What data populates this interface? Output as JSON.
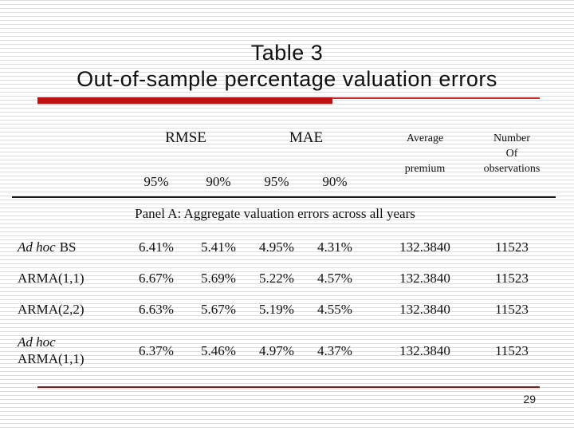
{
  "slide": {
    "title_line1": "Table 3",
    "title_line2": "Out-of-sample percentage valuation errors",
    "page_number": "29"
  },
  "table": {
    "group_headers": [
      "RMSE",
      "MAE"
    ],
    "sub_headers": [
      "95%",
      "90%",
      "95%",
      "90%"
    ],
    "avg_header": [
      "Average",
      "premium"
    ],
    "obs_header": [
      "Number",
      "Of",
      "observations"
    ],
    "panel_title": "Panel A: Aggregate valuation errors across all years",
    "rows": [
      {
        "label_italic": "Ad hoc",
        "label_regular": "BS",
        "values": [
          "6.41%",
          "5.41%",
          "4.95%",
          "4.31%",
          "132.3840",
          "11523"
        ]
      },
      {
        "label_italic": "",
        "label_regular": "ARMA(1,1)",
        "values": [
          "6.67%",
          "5.69%",
          "5.22%",
          "4.57%",
          "132.3840",
          "11523"
        ]
      },
      {
        "label_italic": "",
        "label_regular": "ARMA(2,2)",
        "values": [
          "6.63%",
          "5.67%",
          "5.19%",
          "4.55%",
          "132.3840",
          "11523"
        ]
      },
      {
        "label_italic": "Ad hoc",
        "label_regular": "ARMA(1,1)",
        "values": [
          "6.37%",
          "5.46%",
          "4.97%",
          "4.37%",
          "132.3840",
          "11523"
        ]
      }
    ]
  },
  "colors": {
    "accent_red": "#bf1212",
    "thin_line_red": "#b22f2f",
    "header_rule": "#1a1a1a",
    "footer_line": "#5f2f2f",
    "footer_shadow": "#f3d9d9",
    "background_stripe": "#dcdcdc"
  }
}
